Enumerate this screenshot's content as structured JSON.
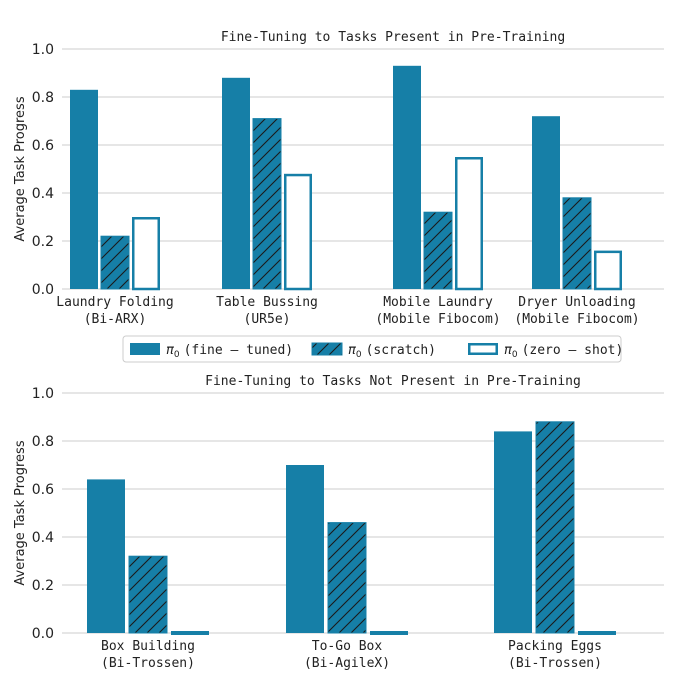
{
  "colors": {
    "primary": "#167fa7",
    "grid": "#cccccc",
    "text": "#222222",
    "hatch": "#1a1a1a"
  },
  "legend": {
    "prefix": "π",
    "subscript": "0",
    "items": [
      {
        "label": "(fine – tuned)",
        "style": "solid"
      },
      {
        "label": "(scratch)",
        "style": "hatched"
      },
      {
        "label": "(zero – shot)",
        "style": "outline"
      }
    ]
  },
  "chart_data": [
    {
      "type": "bar",
      "title": "Fine-Tuning to Tasks Present in Pre-Training",
      "ylabel": "Average Task Progress",
      "ylim": [
        0,
        1.0
      ],
      "yticks": [
        "0.0",
        "0.2",
        "0.4",
        "0.6",
        "0.8",
        "1.0"
      ],
      "grid": true,
      "categories": [
        [
          "Laundry Folding",
          "(Bi-ARX)"
        ],
        [
          "Table Bussing",
          "(UR5e)"
        ],
        [
          "Mobile Laundry",
          "(Mobile Fibocom)"
        ],
        [
          "Dryer Unloading",
          "(Mobile Fibocom)"
        ]
      ],
      "series": [
        {
          "style": "solid",
          "values": [
            0.83,
            0.88,
            0.93,
            0.72
          ]
        },
        {
          "style": "hatched",
          "values": [
            0.22,
            0.71,
            0.32,
            0.38
          ]
        },
        {
          "style": "outline",
          "values": [
            0.3,
            0.48,
            0.55,
            0.16
          ]
        }
      ]
    },
    {
      "type": "bar",
      "title": "Fine-Tuning to Tasks Not Present in Pre-Training",
      "ylabel": "Average Task Progress",
      "ylim": [
        0,
        1.0
      ],
      "yticks": [
        "0.0",
        "0.2",
        "0.4",
        "0.6",
        "0.8",
        "1.0"
      ],
      "grid": true,
      "categories": [
        [
          "Box Building",
          "(Bi-Trossen)"
        ],
        [
          "To-Go Box",
          "(Bi-AgileX)"
        ],
        [
          "Packing Eggs",
          "(Bi-Trossen)"
        ]
      ],
      "series": [
        {
          "style": "solid",
          "values": [
            0.64,
            0.7,
            0.84
          ]
        },
        {
          "style": "hatched",
          "values": [
            0.32,
            0.46,
            0.88
          ]
        },
        {
          "style": "outline",
          "values": [
            0.0,
            0.0,
            0.0
          ]
        }
      ]
    }
  ]
}
